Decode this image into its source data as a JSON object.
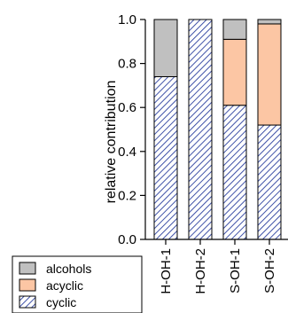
{
  "chart_data": {
    "type": "bar",
    "stacked": true,
    "orientation": "vertical",
    "title": "",
    "xlabel": "",
    "ylabel": "relative contribution",
    "ylim": [
      0,
      1.0
    ],
    "yticks": [
      0.0,
      0.2,
      0.4,
      0.6,
      0.8,
      1.0
    ],
    "ytick_labels": [
      "0.0",
      "0.2",
      "0.4",
      "0.6",
      "0.8",
      "1.0"
    ],
    "categories": [
      "H-OH-1",
      "H-OH-2",
      "S-OH-1",
      "S-OH-2"
    ],
    "series": [
      {
        "name": "cyclic",
        "values": [
          0.74,
          1.0,
          0.61,
          0.52
        ],
        "color": "#2a3f9e",
        "pattern": "diagonal-hatch"
      },
      {
        "name": "acyclic",
        "values": [
          0.0,
          0.0,
          0.3,
          0.46
        ],
        "color": "#fcc6a4",
        "pattern": "solid"
      },
      {
        "name": "alcohols",
        "values": [
          0.26,
          0.0,
          0.09,
          0.02
        ],
        "color": "#c0c0c0",
        "pattern": "solid"
      }
    ],
    "legend": {
      "placement": "bottom-left",
      "entries": [
        "alcohols",
        "acyclic",
        "cyclic"
      ]
    },
    "grid": false
  }
}
